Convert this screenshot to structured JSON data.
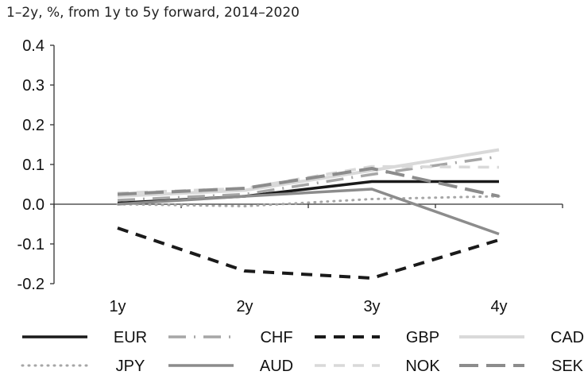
{
  "chart_data": {
    "type": "line",
    "subtitle": "1–2y, %, from 1y to 5y forward, 2014–2020",
    "categories": [
      "1y",
      "2y",
      "3y",
      "4y"
    ],
    "ylim": [
      -0.2,
      0.4
    ],
    "yticks": [
      0.4,
      0.3,
      0.2,
      0.1,
      0.0,
      -0.1,
      -0.2
    ],
    "ytick_labels": [
      "0.4",
      "0.3",
      "0.2",
      "0.1",
      "0.0",
      "-0.1",
      "-0.2"
    ],
    "grid": false,
    "legend_position": "bottom",
    "series": [
      {
        "name": "EUR",
        "values": [
          0.003,
          0.02,
          0.057,
          0.057
        ],
        "color": "#1a1a1a",
        "dash": "solid",
        "width": 3.5
      },
      {
        "name": "CHF",
        "values": [
          0.01,
          0.025,
          0.075,
          0.12
        ],
        "color": "#a6a6a6",
        "dash": "dashdot",
        "width": 3.5
      },
      {
        "name": "GBP",
        "values": [
          -0.06,
          -0.168,
          -0.186,
          -0.09
        ],
        "color": "#1a1a1a",
        "dash": "dash",
        "width": 4
      },
      {
        "name": "CAD",
        "values": [
          0.02,
          0.035,
          0.085,
          0.137
        ],
        "color": "#d9d9d9",
        "dash": "solid",
        "width": 4
      },
      {
        "name": "JPY",
        "values": [
          0.0,
          -0.005,
          0.013,
          0.02
        ],
        "color": "#a6a6a6",
        "dash": "dot",
        "width": 3
      },
      {
        "name": "AUD",
        "values": [
          0.0,
          0.02,
          0.038,
          -0.075
        ],
        "color": "#8c8c8c",
        "dash": "solid",
        "width": 3.5
      },
      {
        "name": "NOK",
        "values": [
          0.028,
          0.04,
          0.095,
          0.093
        ],
        "color": "#d9d9d9",
        "dash": "dash",
        "width": 3.5
      },
      {
        "name": "SEK",
        "values": [
          0.025,
          0.04,
          0.09,
          0.02
        ],
        "color": "#8c8c8c",
        "dash": "longdash",
        "width": 4
      }
    ]
  }
}
